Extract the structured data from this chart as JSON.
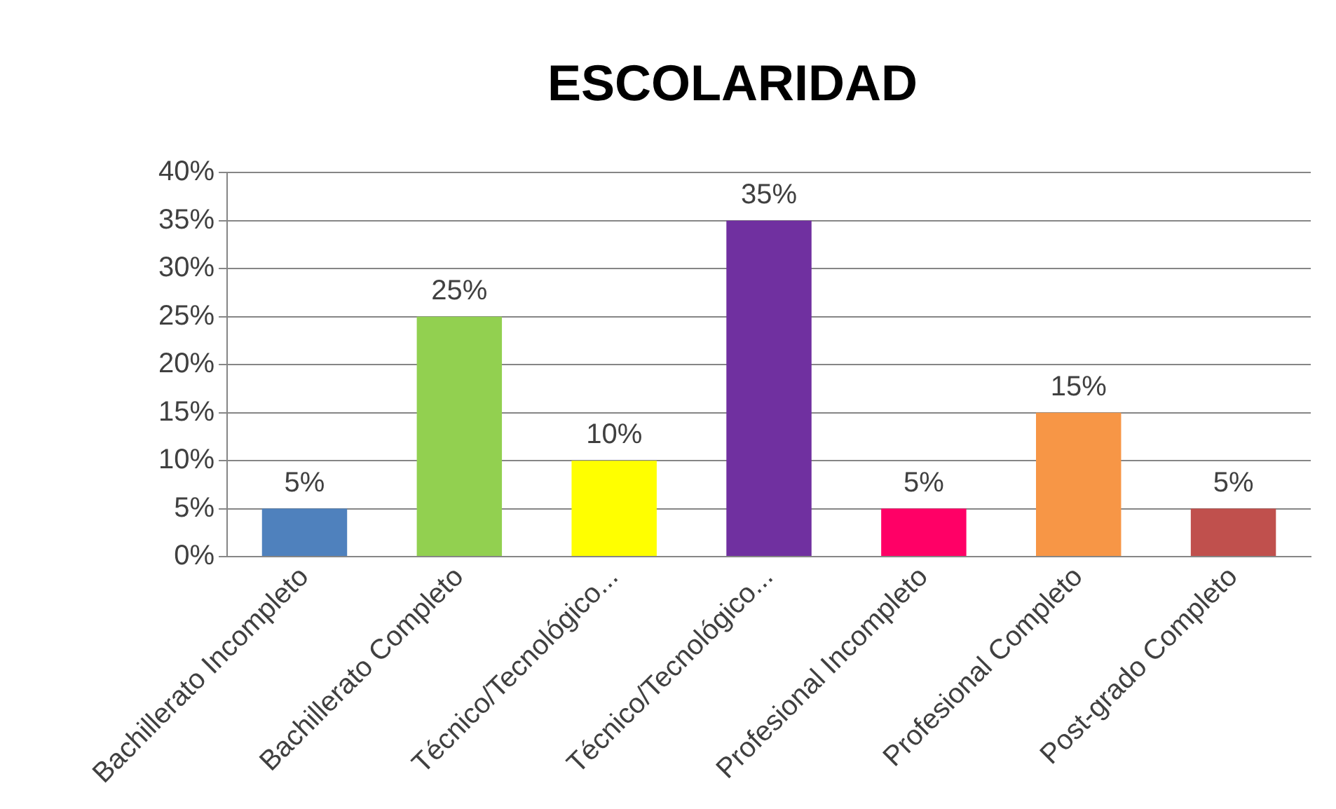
{
  "chart_data": {
    "type": "bar",
    "title": "ESCOLARIDAD",
    "categories": [
      "Bachillerato Incompleto",
      "Bachillerato Completo",
      "Técnico/Tecnológico...",
      "Técnico/Tecnológico...",
      "Profesional Incompleto",
      "Profesional Completo",
      "Post-grado Completo"
    ],
    "values": [
      5,
      25,
      10,
      35,
      5,
      15,
      5
    ],
    "colors": [
      "#4f81bd",
      "#92d050",
      "#ffff00",
      "#7030a0",
      "#ff0066",
      "#f79646",
      "#c0504d"
    ],
    "value_labels": [
      "5%",
      "25%",
      "10%",
      "35%",
      "5%",
      "15%",
      "5%"
    ],
    "ylim": [
      0,
      40
    ],
    "yticks": [
      {
        "value": 0,
        "label": "0%"
      },
      {
        "value": 5,
        "label": "5%"
      },
      {
        "value": 10,
        "label": "10%"
      },
      {
        "value": 15,
        "label": "15%"
      },
      {
        "value": 20,
        "label": "20%"
      },
      {
        "value": 25,
        "label": "25%"
      },
      {
        "value": 30,
        "label": "30%"
      },
      {
        "value": 35,
        "label": "35%"
      },
      {
        "value": 40,
        "label": "40%"
      }
    ],
    "grid": "y",
    "legend": false
  }
}
